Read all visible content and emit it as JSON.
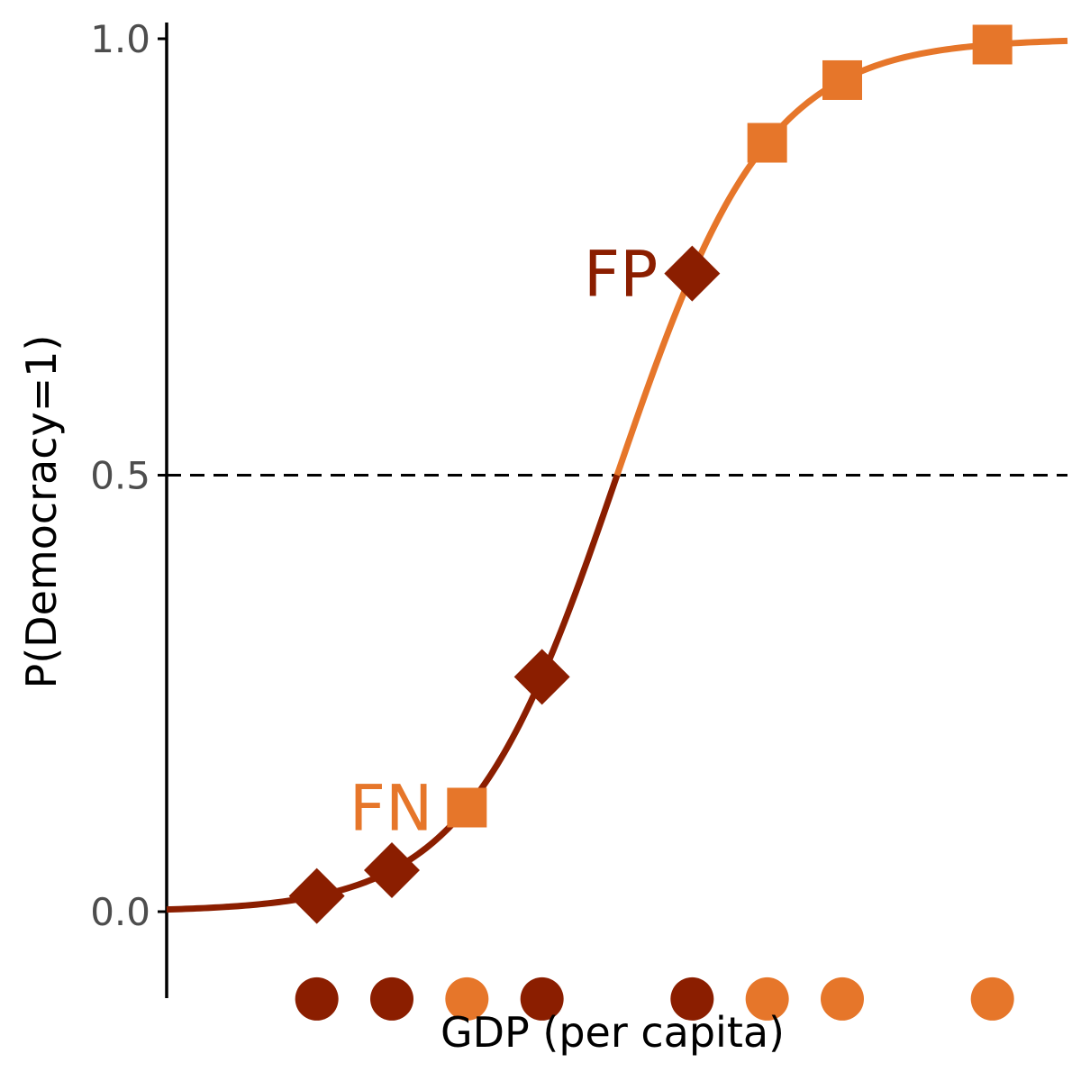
{
  "chart_data": {
    "type": "line",
    "xlabel": "GDP (per capita)",
    "ylabel": "P(Democracy=1)",
    "ylim": [
      -0.2,
      1.0
    ],
    "xlim": [
      0,
      12
    ],
    "yticks": [
      {
        "value": 0.0,
        "label": "0.0"
      },
      {
        "value": 0.5,
        "label": "0.5"
      },
      {
        "value": 1.0,
        "label": "1.0"
      }
    ],
    "threshold": {
      "value": 0.5,
      "style": "dashed",
      "color": "#000000"
    },
    "curve": {
      "kind": "logistic",
      "midpoint": 6.0,
      "slope": 1.0,
      "color_below_threshold": "#8b1e00",
      "color_above_threshold": "#e6762a"
    },
    "colors": {
      "class_0": "#8b1e00",
      "class_1": "#e6762a"
    },
    "points": [
      {
        "x": 2.0,
        "y": 0.02,
        "actual": 0,
        "shape": "diamond"
      },
      {
        "x": 3.0,
        "y": 0.07,
        "actual": 0,
        "shape": "diamond"
      },
      {
        "x": 4.0,
        "y": 0.16,
        "actual": 1,
        "shape": "square"
      },
      {
        "x": 5.0,
        "y": 0.31,
        "actual": 0,
        "shape": "diamond"
      },
      {
        "x": 7.0,
        "y": 0.69,
        "actual": 0,
        "shape": "diamond"
      },
      {
        "x": 8.0,
        "y": 0.84,
        "actual": 1,
        "shape": "square"
      },
      {
        "x": 9.0,
        "y": 0.93,
        "actual": 1,
        "shape": "square"
      },
      {
        "x": 11.0,
        "y": 0.99,
        "actual": 1,
        "shape": "square"
      }
    ],
    "rug_y": -0.1,
    "annotations": [
      {
        "text": "FN",
        "point_index": 2,
        "color": "#e6762a"
      },
      {
        "text": "FP",
        "point_index": 4,
        "color": "#8b1e00"
      }
    ]
  }
}
